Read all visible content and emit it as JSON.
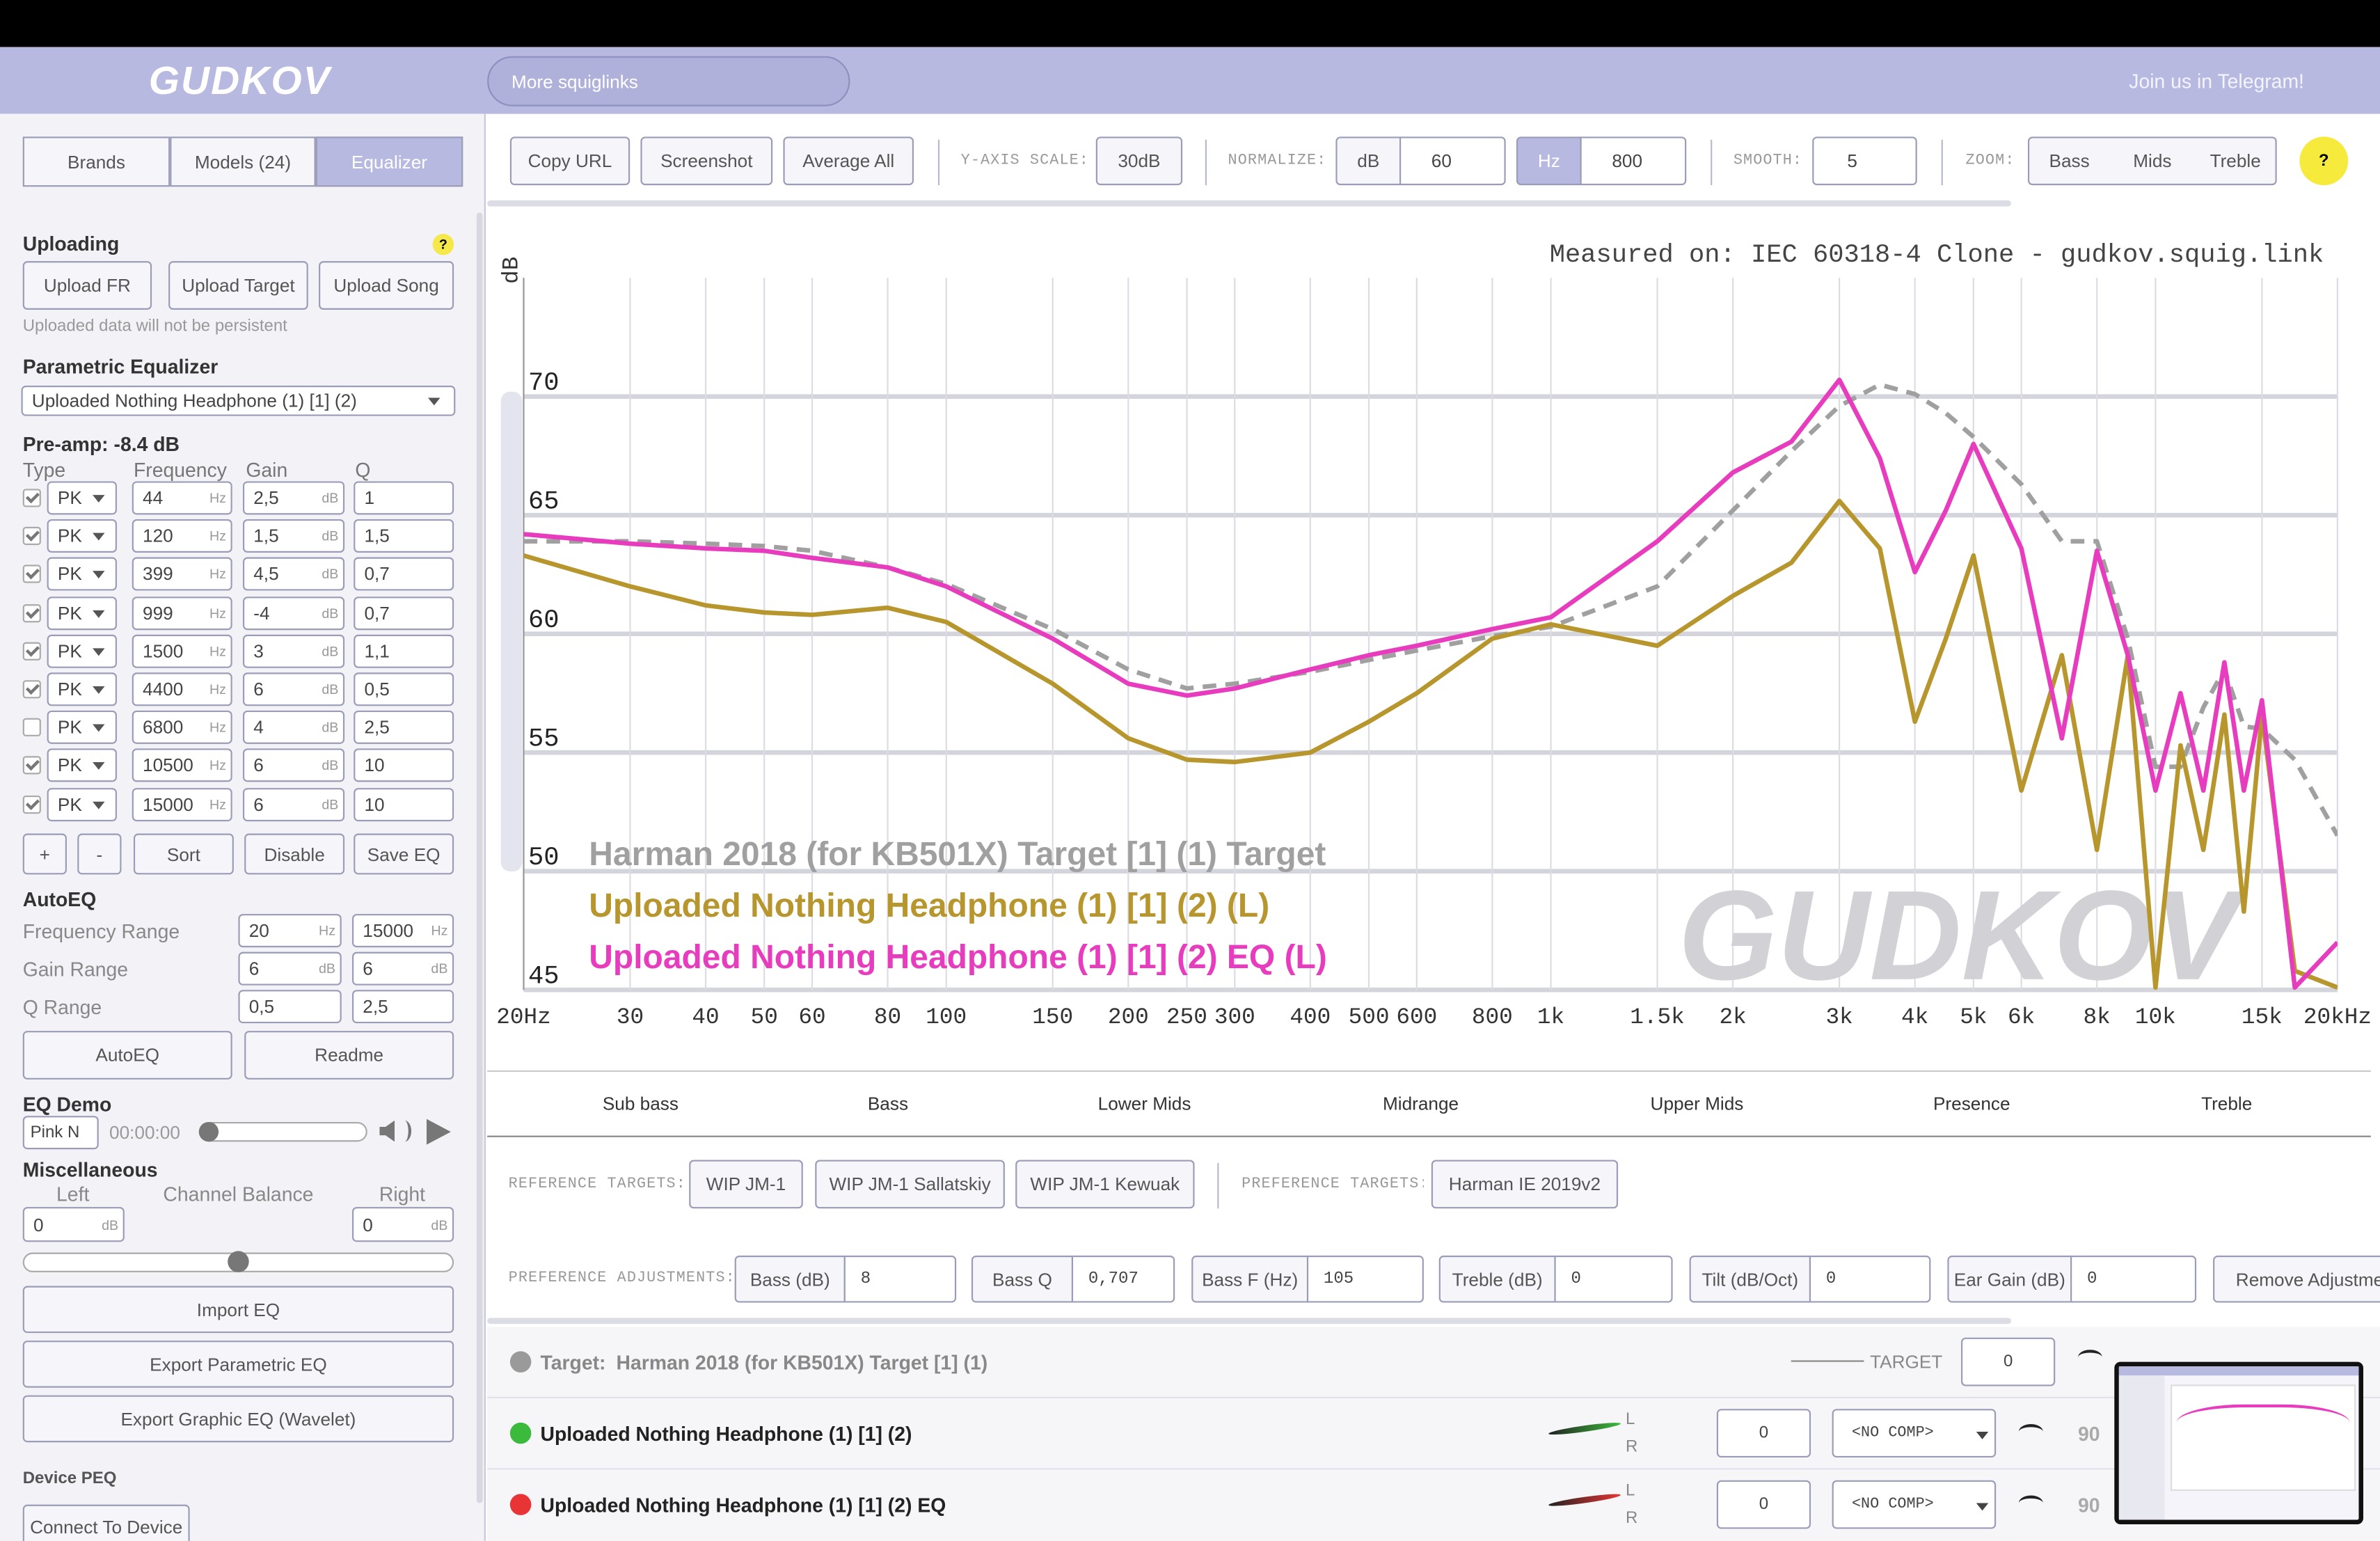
{
  "header": {
    "logo": "GUDKOV",
    "squiglinks": "More squiglinks",
    "telegram": "Join us in Telegram!"
  },
  "tabs": [
    "Brands",
    "Models (24)",
    "Equalizer"
  ],
  "uploading": {
    "title": "Uploading",
    "help": "?",
    "buttons": [
      "Upload FR",
      "Upload Target",
      "Upload Song"
    ],
    "note": "Uploaded data will not be persistent"
  },
  "peq": {
    "title": "Parametric Equalizer",
    "selected": "Uploaded Nothing Headphone (1) [1] (2)",
    "preamp": "Pre-amp: -8.4 dB",
    "columns": [
      "Type",
      "Frequency",
      "Gain",
      "Q"
    ],
    "freq_unit": "Hz",
    "gain_unit": "dB",
    "filters": [
      {
        "enabled": true,
        "type": "PK",
        "freq": "44",
        "gain": "2,5",
        "q": "1"
      },
      {
        "enabled": true,
        "type": "PK",
        "freq": "120",
        "gain": "1,5",
        "q": "1,5"
      },
      {
        "enabled": true,
        "type": "PK",
        "freq": "399",
        "gain": "4,5",
        "q": "0,7"
      },
      {
        "enabled": true,
        "type": "PK",
        "freq": "999",
        "gain": "-4",
        "q": "0,7"
      },
      {
        "enabled": true,
        "type": "PK",
        "freq": "1500",
        "gain": "3",
        "q": "1,1"
      },
      {
        "enabled": true,
        "type": "PK",
        "freq": "4400",
        "gain": "6",
        "q": "0,5"
      },
      {
        "enabled": false,
        "type": "PK",
        "freq": "6800",
        "gain": "4",
        "q": "2,5"
      },
      {
        "enabled": true,
        "type": "PK",
        "freq": "10500",
        "gain": "6",
        "q": "10"
      },
      {
        "enabled": true,
        "type": "PK",
        "freq": "15000",
        "gain": "6",
        "q": "10"
      }
    ],
    "buttons": [
      "+",
      "-",
      "Sort",
      "Disable",
      "Save EQ"
    ]
  },
  "autoeq": {
    "title": "AutoEQ",
    "rows": [
      {
        "label": "Frequency Range",
        "min": "20",
        "min_unit": "Hz",
        "max": "15000",
        "max_unit": "Hz"
      },
      {
        "label": "Gain Range",
        "min": "6",
        "min_unit": "dB",
        "max": "6",
        "max_unit": "dB"
      },
      {
        "label": "Q Range",
        "min": "0,5",
        "max": "2,5"
      }
    ],
    "buttons": [
      "AutoEQ",
      "Readme"
    ]
  },
  "eq_demo": {
    "title": "EQ Demo",
    "noise": "Pink N",
    "time": "00:00:00"
  },
  "misc": {
    "title": "Miscellaneous",
    "left": "Left",
    "balance": "Channel Balance",
    "right": "Right",
    "left_value": "0",
    "right_value": "0",
    "unit": "dB",
    "buttons": [
      "Import EQ",
      "Export Parametric EQ",
      "Export Graphic EQ (Wavelet)"
    ]
  },
  "device": {
    "title": "Device PEQ",
    "button": "Connect To Device"
  },
  "toolbar": {
    "buttons": [
      "Copy URL",
      "Screenshot",
      "Average All"
    ],
    "yscale_label": "Y-AXIS SCALE:",
    "yscale": "30dB",
    "normalize_label": "NORMALIZE:",
    "db_unit": "dB",
    "db_value": "60",
    "hz_unit": "Hz",
    "hz_value": "800",
    "smooth_label": "SMOOTH:",
    "smooth": "5",
    "zoom_label": "ZOOM:",
    "zoom": [
      "Bass",
      "Mids",
      "Treble"
    ],
    "help": "?"
  },
  "chart_data": {
    "type": "line",
    "title": "Measured on: IEC 60318-4 Clone - gudkov.squig.link",
    "y_label": "dB",
    "watermark": "GUDKOV",
    "log_x": true,
    "grid": true,
    "xlim": [
      20,
      20000
    ],
    "ylim": [
      45,
      75
    ],
    "yticks": [
      45,
      50,
      55,
      60,
      65,
      70
    ],
    "xticks": [
      {
        "value": 20,
        "label": "20Hz"
      },
      30,
      40,
      50,
      60,
      80,
      100,
      150,
      200,
      250,
      300,
      400,
      500,
      600,
      800,
      {
        "value": 1000,
        "label": "1k"
      },
      {
        "value": 1500,
        "label": "1.5k"
      },
      {
        "value": 2000,
        "label": "2k"
      },
      {
        "value": 3000,
        "label": "3k"
      },
      {
        "value": 4000,
        "label": "4k"
      },
      {
        "value": 5000,
        "label": "5k"
      },
      {
        "value": 6000,
        "label": "6k"
      },
      {
        "value": 8000,
        "label": "8k"
      },
      {
        "value": 10000,
        "label": "10k"
      },
      {
        "value": 15000,
        "label": "15k"
      },
      {
        "value": 20000,
        "label": "20kHz"
      }
    ],
    "x": [
      20,
      30,
      40,
      50,
      60,
      80,
      100,
      150,
      200,
      250,
      300,
      400,
      500,
      600,
      800,
      1000,
      1500,
      2000,
      2500,
      3000,
      3500,
      4000,
      4500,
      5000,
      6000,
      7000,
      8000,
      9000,
      10000,
      11000,
      12000,
      13000,
      14000,
      15000,
      17000,
      20000
    ],
    "series": [
      {
        "name": "Harman 2018 (for KB501X) Target [1] (1) Target",
        "color": "#a0a0a0",
        "dash": true,
        "values": [
          63.9,
          63.9,
          63.8,
          63.7,
          63.5,
          62.8,
          62.1,
          60.2,
          58.5,
          57.7,
          57.9,
          58.4,
          58.9,
          59.3,
          59.9,
          60.3,
          62.0,
          65.2,
          67.7,
          69.6,
          70.5,
          70.1,
          69.3,
          68.3,
          66.3,
          63.9,
          63.9,
          59.8,
          54.4,
          54.4,
          56.9,
          58.5,
          56.1,
          56.0,
          54.7,
          51.5
        ]
      },
      {
        "name": "Uploaded Nothing Headphone (1) [1] (2) (L)",
        "color": "#b8962e",
        "values": [
          63.3,
          62.0,
          61.2,
          60.9,
          60.8,
          61.1,
          60.5,
          57.9,
          55.6,
          54.7,
          54.6,
          55.0,
          56.3,
          57.5,
          59.8,
          60.4,
          59.5,
          61.6,
          63.0,
          65.6,
          63.6,
          56.3,
          59.8,
          63.3,
          53.4,
          59.1,
          50.9,
          59.1,
          45.1,
          55.3,
          50.9,
          56.6,
          48.3,
          56.6,
          45.8,
          45.1
        ]
      },
      {
        "name": "Uploaded Nothing Headphone (1) [1] (2) EQ (L)",
        "color": "#e83cbe",
        "values": [
          64.2,
          63.8,
          63.6,
          63.5,
          63.2,
          62.8,
          62.0,
          59.8,
          57.9,
          57.4,
          57.7,
          58.5,
          59.1,
          59.5,
          60.2,
          60.7,
          63.9,
          66.8,
          68.1,
          70.7,
          67.4,
          62.6,
          65.2,
          68.0,
          63.6,
          55.6,
          63.5,
          59.1,
          53.4,
          57.5,
          53.4,
          58.8,
          53.4,
          57.2,
          45.1,
          47.0
        ]
      }
    ]
  },
  "bands": [
    "Sub bass",
    "Bass",
    "Lower Mids",
    "Midrange",
    "Upper Mids",
    "Presence",
    "Treble"
  ],
  "targets": {
    "reference_label": "REFERENCE TARGETS:",
    "reference": [
      "WIP JM-1",
      "WIP JM-1 Sallatskiy",
      "WIP JM-1 Kewuak"
    ],
    "preference_label": "PREFERENCE TARGETS:",
    "preference": [
      "Harman IE 2019v2"
    ]
  },
  "adjustments": {
    "label": "PREFERENCE ADJUSTMENTS:",
    "items": [
      {
        "label": "Bass (dB)",
        "value": "8"
      },
      {
        "label": "Bass Q",
        "value": "0,707"
      },
      {
        "label": "Bass F (Hz)",
        "value": "105"
      },
      {
        "label": "Treble (dB)",
        "value": "0"
      },
      {
        "label": "Tilt (dB/Oct)",
        "value": "0"
      },
      {
        "label": "Ear Gain (dB)",
        "value": "0"
      }
    ],
    "remove": "Remove Adjustme"
  },
  "table": {
    "target": {
      "prefix": "Target:",
      "name": "Harman 2018 (for KB501X) Target [1] (1)",
      "tag": "TARGET",
      "offset": "0"
    },
    "rows": [
      {
        "name": "Uploaded  Nothing Headphone (1) [1] (2)",
        "color": "#3cba3c",
        "left": "L",
        "right": "R",
        "offset": "0",
        "comp": "<NO COMP>",
        "value": "90"
      },
      {
        "name": "Uploaded  Nothing Headphone (1) [1] (2) EQ",
        "color": "#e83434",
        "left": "L",
        "right": "R",
        "offset": "0",
        "comp": "<NO COMP>",
        "value": "90"
      }
    ]
  }
}
